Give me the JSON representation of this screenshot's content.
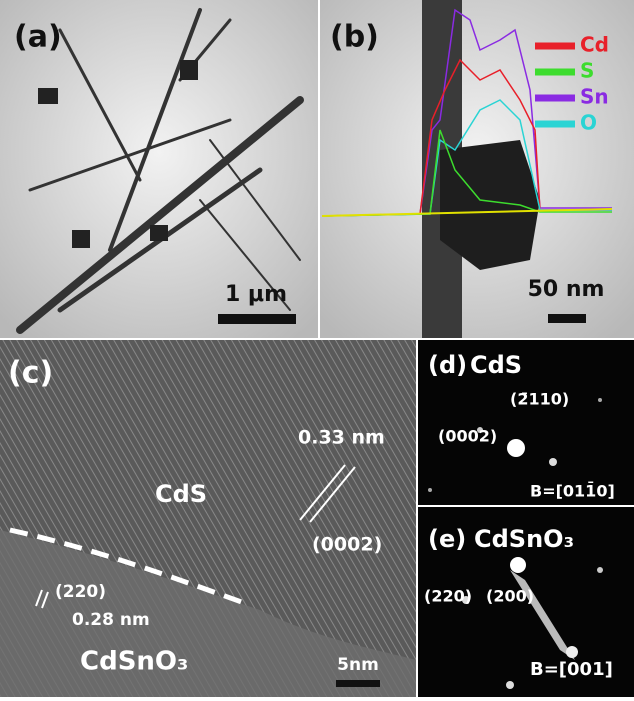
{
  "panels": [
    {
      "label": "(a)",
      "scale_bar": "1 μm"
    },
    {
      "label": "(b)",
      "legend": [
        {
          "name": "Cd",
          "color": "#e8202a"
        },
        {
          "name": "S",
          "color": "#3ddc2e"
        },
        {
          "name": "Sn",
          "color": "#8a2be2"
        },
        {
          "name": "O",
          "color": "#2ad4d4"
        }
      ],
      "scale_bar": "50 nm"
    },
    {
      "label": "(c)",
      "annotations": [
        "CdS",
        "0.33 nm",
        "(0002)",
        "(220)",
        "0.28 nm",
        "CdSnO₃"
      ],
      "scale_bar": "5nm"
    },
    {
      "label": "(d)",
      "title": "CdS",
      "annotations": [
        "(2̄110)",
        "(0002)",
        "B=[011̄0]"
      ]
    },
    {
      "label": "(e)",
      "title": "CdSnO₃",
      "annotations": [
        "(220)",
        "(200)",
        "B=[001]"
      ]
    }
  ]
}
